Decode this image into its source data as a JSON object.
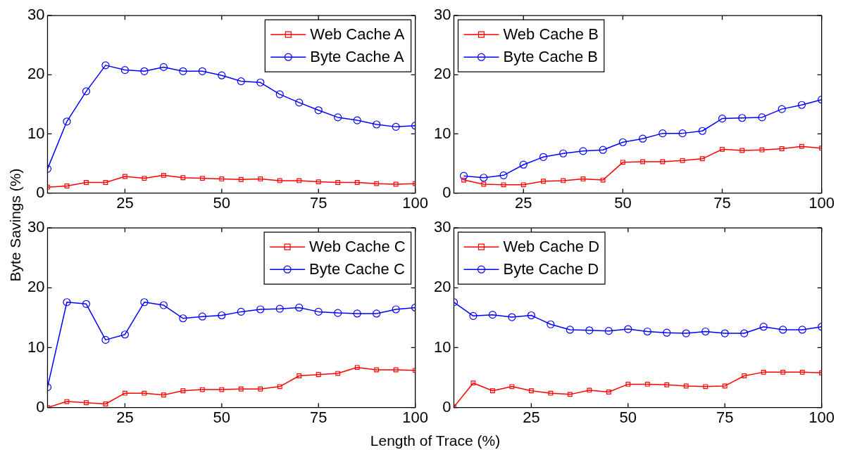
{
  "chart_data": [
    {
      "type": "line",
      "ylabel": "Byte Savings (%)",
      "x": [
        5,
        10,
        15,
        20,
        25,
        30,
        35,
        40,
        45,
        50,
        55,
        60,
        65,
        70,
        75,
        80,
        85,
        90,
        95,
        100
      ],
      "xlim": [
        5,
        100
      ],
      "xticks": [
        25,
        50,
        75,
        100
      ],
      "ylim": [
        0,
        30
      ],
      "yticks": [
        0,
        10,
        20,
        30
      ],
      "legend": "top right",
      "grid": false,
      "series": [
        {
          "name": "Web Cache A",
          "color": "#ff0000",
          "marker": "square",
          "values": [
            1.0,
            1.2,
            1.8,
            1.8,
            2.8,
            2.5,
            3.0,
            2.6,
            2.5,
            2.4,
            2.3,
            2.4,
            2.1,
            2.1,
            1.9,
            1.8,
            1.8,
            1.6,
            1.5,
            1.6
          ]
        },
        {
          "name": "Byte Cache A",
          "color": "#0000ff",
          "marker": "circle",
          "values": [
            4.1,
            12.1,
            17.2,
            21.6,
            20.8,
            20.6,
            21.3,
            20.6,
            20.6,
            19.9,
            18.9,
            18.7,
            16.7,
            15.3,
            14.0,
            12.8,
            12.3,
            11.6,
            11.2,
            11.4
          ]
        }
      ]
    },
    {
      "type": "line",
      "x": [
        10,
        15,
        20,
        25,
        30,
        35,
        40,
        45,
        50,
        55,
        60,
        65,
        70,
        75,
        80,
        85,
        90,
        95,
        100
      ],
      "xlim": [
        7.5,
        100
      ],
      "xticks": [
        25,
        50,
        75,
        100
      ],
      "ylim": [
        0,
        30
      ],
      "yticks": [
        0,
        10,
        20,
        30
      ],
      "legend": "top left",
      "grid": false,
      "series": [
        {
          "name": "Web Cache B",
          "color": "#ff0000",
          "marker": "square",
          "values": [
            2.2,
            1.5,
            1.4,
            1.4,
            2.0,
            2.1,
            2.4,
            2.2,
            5.2,
            5.3,
            5.3,
            5.5,
            5.8,
            7.4,
            7.2,
            7.3,
            7.5,
            7.9,
            7.6
          ]
        },
        {
          "name": "Byte Cache B",
          "color": "#0000ff",
          "marker": "circle",
          "values": [
            2.9,
            2.6,
            3.0,
            4.8,
            6.1,
            6.7,
            7.1,
            7.3,
            8.6,
            9.2,
            10.1,
            10.1,
            10.5,
            12.6,
            12.7,
            12.8,
            14.2,
            14.9,
            15.8
          ]
        }
      ]
    },
    {
      "type": "line",
      "xlabel": "Length of Trace (%)",
      "x": [
        5,
        10,
        15,
        20,
        25,
        30,
        35,
        40,
        45,
        50,
        55,
        60,
        65,
        70,
        75,
        80,
        85,
        90,
        95,
        100
      ],
      "xlim": [
        5,
        100
      ],
      "xticks": [
        25,
        50,
        75,
        100
      ],
      "ylim": [
        0,
        30
      ],
      "yticks": [
        0,
        10,
        20,
        30
      ],
      "legend": "top right",
      "grid": false,
      "series": [
        {
          "name": "Web Cache C",
          "color": "#ff0000",
          "marker": "square",
          "values": [
            0,
            1.0,
            0.8,
            0.6,
            2.4,
            2.4,
            2.1,
            2.8,
            3.0,
            3.0,
            3.1,
            3.1,
            3.5,
            5.3,
            5.5,
            5.7,
            6.7,
            6.3,
            6.3,
            6.2
          ]
        },
        {
          "name": "Byte Cache C",
          "color": "#0000ff",
          "marker": "circle",
          "values": [
            3.4,
            17.6,
            17.3,
            11.3,
            12.2,
            17.6,
            17.1,
            14.9,
            15.2,
            15.4,
            16.0,
            16.4,
            16.5,
            16.7,
            16.0,
            15.8,
            15.7,
            15.7,
            16.4,
            16.7
          ]
        }
      ]
    },
    {
      "type": "line",
      "x": [
        5,
        10,
        15,
        20,
        25,
        30,
        35,
        40,
        45,
        50,
        55,
        60,
        65,
        70,
        75,
        80,
        85,
        90,
        95,
        100
      ],
      "xlim": [
        5,
        100
      ],
      "xticks": [
        25,
        50,
        75,
        100
      ],
      "ylim": [
        0,
        30
      ],
      "yticks": [
        0,
        10,
        20,
        30
      ],
      "legend": "top left",
      "grid": false,
      "series": [
        {
          "name": "Web Cache D",
          "color": "#ff0000",
          "marker": "square",
          "values": [
            0.1,
            4.1,
            2.8,
            3.5,
            2.8,
            2.4,
            2.2,
            2.9,
            2.6,
            3.9,
            3.9,
            3.8,
            3.6,
            3.5,
            3.6,
            5.3,
            5.9,
            5.9,
            5.9,
            5.8
          ]
        },
        {
          "name": "Byte Cache D",
          "color": "#0000ff",
          "marker": "circle",
          "values": [
            17.6,
            15.3,
            15.5,
            15.1,
            15.4,
            13.9,
            13.0,
            12.9,
            12.8,
            13.1,
            12.7,
            12.5,
            12.4,
            12.7,
            12.4,
            12.4,
            13.5,
            13.0,
            13.0,
            13.5
          ]
        }
      ]
    }
  ]
}
